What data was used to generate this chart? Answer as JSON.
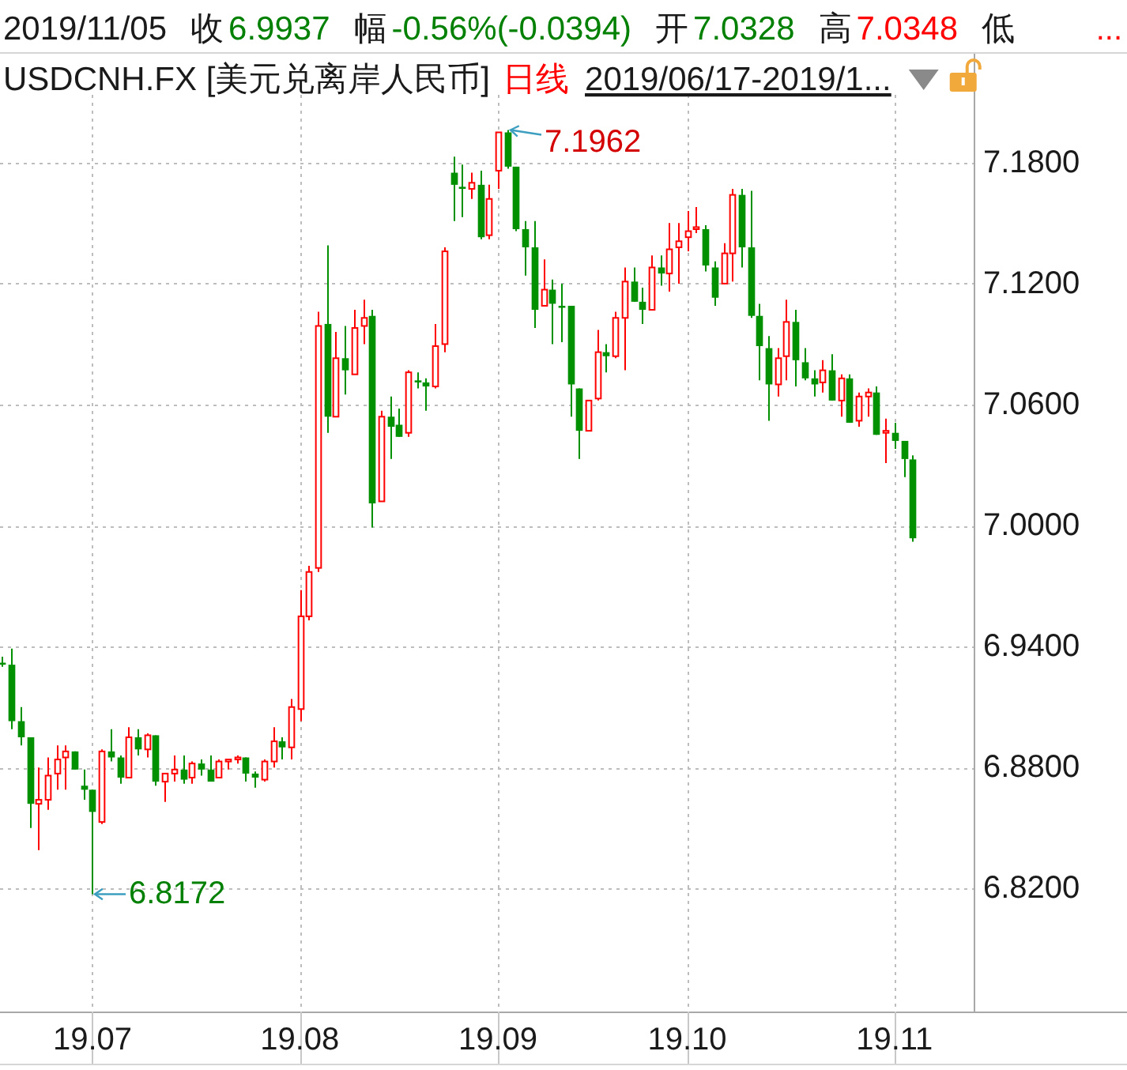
{
  "chart_data": {
    "type": "candlestick",
    "title": "USDCNH.FX [美元兑离岸人民币]",
    "subtitle": "日线",
    "categories": [
      null,
      null,
      null,
      null,
      null,
      null,
      null,
      null,
      null,
      null,
      "19.07",
      null,
      null,
      null,
      null,
      null,
      null,
      null,
      null,
      null,
      null,
      null,
      null,
      null,
      null,
      null,
      null,
      null,
      null,
      null,
      null,
      null,
      null,
      "19.08",
      null,
      null,
      null,
      null,
      null,
      null,
      null,
      null,
      null,
      null,
      null,
      null,
      null,
      null,
      null,
      null,
      null,
      null,
      null,
      null,
      null,
      "19.09",
      null,
      null,
      null,
      null,
      null,
      null,
      null,
      null,
      null,
      null,
      null,
      null,
      null,
      null,
      null,
      null,
      null,
      null,
      null,
      null,
      "19.10",
      null,
      null,
      null,
      null,
      null,
      null,
      null,
      null,
      null,
      null,
      null,
      null,
      null,
      null,
      null,
      null,
      null,
      null,
      null,
      null,
      null,
      null,
      "19.11",
      null,
      null
    ],
    "ohlc": [
      [
        6.932,
        6.935,
        6.93,
        6.931
      ],
      [
        6.931,
        6.939,
        6.899,
        6.903
      ],
      [
        6.903,
        6.91,
        6.891,
        6.895
      ],
      [
        6.895,
        6.895,
        6.85,
        6.862
      ],
      [
        6.862,
        6.88,
        6.839,
        6.864
      ],
      [
        6.864,
        6.885,
        6.859,
        6.876
      ],
      [
        6.877,
        6.891,
        6.869,
        6.884
      ],
      [
        6.885,
        6.891,
        6.869,
        6.888
      ],
      [
        6.888,
        6.888,
        6.879,
        6.879
      ],
      [
        6.871,
        6.879,
        6.864,
        6.869
      ],
      [
        6.869,
        6.869,
        6.8172,
        6.858
      ],
      [
        6.853,
        6.889,
        6.852,
        6.888
      ],
      [
        6.888,
        6.899,
        6.883,
        6.885
      ],
      [
        6.885,
        6.886,
        6.872,
        6.875
      ],
      [
        6.875,
        6.9,
        6.875,
        6.895
      ],
      [
        6.895,
        6.899,
        6.886,
        6.889
      ],
      [
        6.889,
        6.897,
        6.885,
        6.896
      ],
      [
        6.896,
        6.896,
        6.871,
        6.873
      ],
      [
        6.873,
        6.877,
        6.863,
        6.877
      ],
      [
        6.877,
        6.886,
        6.873,
        6.879
      ],
      [
        6.879,
        6.886,
        6.872,
        6.874
      ],
      [
        6.875,
        6.883,
        6.872,
        6.882
      ],
      [
        6.882,
        6.884,
        6.876,
        6.879
      ],
      [
        6.879,
        6.886,
        6.873,
        6.873
      ],
      [
        6.875,
        6.884,
        6.875,
        6.883
      ],
      [
        6.883,
        6.884,
        6.879,
        6.884
      ],
      [
        6.884,
        6.886,
        6.882,
        6.885
      ],
      [
        6.885,
        6.885,
        6.873,
        6.877
      ],
      [
        6.877,
        6.878,
        6.87,
        6.875
      ],
      [
        6.874,
        6.884,
        6.873,
        6.883
      ],
      [
        6.883,
        6.9,
        6.88,
        6.893
      ],
      [
        6.893,
        6.895,
        6.884,
        6.89
      ],
      [
        6.89,
        6.914,
        6.884,
        6.91
      ],
      [
        6.909,
        6.968,
        6.903,
        6.955
      ],
      [
        6.955,
        6.98,
        6.953,
        6.977
      ],
      [
        6.979,
        7.106,
        6.977,
        7.099
      ],
      [
        7.1,
        7.139,
        7.046,
        7.054
      ],
      [
        7.054,
        7.096,
        7.054,
        7.083
      ],
      [
        7.083,
        7.099,
        7.065,
        7.077
      ],
      [
        7.075,
        7.107,
        7.075,
        7.098
      ],
      [
        7.099,
        7.112,
        7.09,
        7.103
      ],
      [
        7.104,
        7.107,
        6.999,
        7.011
      ],
      [
        7.012,
        7.057,
        7.012,
        7.054
      ],
      [
        7.054,
        7.064,
        7.033,
        7.049
      ],
      [
        7.05,
        7.058,
        7.044,
        7.044
      ],
      [
        7.046,
        7.077,
        7.044,
        7.076
      ],
      [
        7.072,
        7.076,
        7.068,
        7.071
      ],
      [
        7.071,
        7.073,
        7.057,
        7.069
      ],
      [
        7.069,
        7.1,
        7.068,
        7.089
      ],
      [
        7.09,
        7.138,
        7.086,
        7.136
      ],
      [
        7.175,
        7.183,
        7.151,
        7.169
      ],
      [
        7.168,
        7.179,
        7.153,
        7.167
      ],
      [
        7.167,
        7.175,
        7.162,
        7.17
      ],
      [
        7.169,
        7.176,
        7.142,
        7.143
      ],
      [
        7.144,
        7.169,
        7.142,
        7.162
      ],
      [
        7.176,
        7.195,
        7.167,
        7.195
      ],
      [
        7.195,
        7.1962,
        7.177,
        7.178
      ],
      [
        7.178,
        7.178,
        7.146,
        7.147
      ],
      [
        7.147,
        7.151,
        7.124,
        7.138
      ],
      [
        7.138,
        7.151,
        7.098,
        7.107
      ],
      [
        7.109,
        7.132,
        7.109,
        7.117
      ],
      [
        7.117,
        7.122,
        7.09,
        7.11
      ],
      [
        7.109,
        7.12,
        7.091,
        7.108
      ],
      [
        7.109,
        7.109,
        7.054,
        7.07
      ],
      [
        7.068,
        7.068,
        7.033,
        7.047
      ],
      [
        7.047,
        7.062,
        7.047,
        7.062
      ],
      [
        7.063,
        7.097,
        7.062,
        7.086
      ],
      [
        7.086,
        7.09,
        7.076,
        7.084
      ],
      [
        7.084,
        7.106,
        7.083,
        7.103
      ],
      [
        7.103,
        7.128,
        7.077,
        7.121
      ],
      [
        7.121,
        7.128,
        7.111,
        7.111
      ],
      [
        7.111,
        7.118,
        7.1,
        7.107
      ],
      [
        7.107,
        7.134,
        7.107,
        7.128
      ],
      [
        7.128,
        7.134,
        7.119,
        7.125
      ],
      [
        7.125,
        7.15,
        7.116,
        7.137
      ],
      [
        7.138,
        7.15,
        7.12,
        7.141
      ],
      [
        7.143,
        7.156,
        7.136,
        7.146
      ],
      [
        7.147,
        7.158,
        7.145,
        7.148
      ],
      [
        7.147,
        7.149,
        7.126,
        7.129
      ],
      [
        7.128,
        7.131,
        7.109,
        7.113
      ],
      [
        7.12,
        7.14,
        7.12,
        7.135
      ],
      [
        7.135,
        7.167,
        7.121,
        7.164
      ],
      [
        7.164,
        7.167,
        7.128,
        7.138
      ],
      [
        7.138,
        7.166,
        7.103,
        7.104
      ],
      [
        7.104,
        7.11,
        7.072,
        7.089
      ],
      [
        7.088,
        7.094,
        7.052,
        7.07
      ],
      [
        7.07,
        7.088,
        7.064,
        7.083
      ],
      [
        7.084,
        7.112,
        7.072,
        7.101
      ],
      [
        7.101,
        7.107,
        7.069,
        7.082
      ],
      [
        7.081,
        7.088,
        7.072,
        7.073
      ],
      [
        7.073,
        7.077,
        7.064,
        7.07
      ],
      [
        7.071,
        7.082,
        7.066,
        7.077
      ],
      [
        7.077,
        7.085,
        7.062,
        7.062
      ],
      [
        7.062,
        7.075,
        7.054,
        7.073
      ],
      [
        7.073,
        7.075,
        7.051,
        7.051
      ],
      [
        7.052,
        7.066,
        7.049,
        7.064
      ],
      [
        7.064,
        7.068,
        7.054,
        7.066
      ],
      [
        7.066,
        7.069,
        7.045,
        7.045
      ],
      [
        7.046,
        7.053,
        7.031,
        7.047
      ],
      [
        7.046,
        7.051,
        7.038,
        7.042
      ],
      [
        7.042,
        7.042,
        7.024,
        7.033
      ],
      [
        7.0328,
        7.0348,
        6.992,
        6.9937
      ]
    ],
    "ylim": [
      6.759,
      7.234
    ],
    "yticks": [
      {
        "value": 6.82,
        "label": "6.8200"
      },
      {
        "value": 6.88,
        "label": "6.8800"
      },
      {
        "value": 6.94,
        "label": "6.9400"
      },
      {
        "value": 7.0,
        "label": "7.0000"
      },
      {
        "value": 7.06,
        "label": "7.0600"
      },
      {
        "value": 7.12,
        "label": "7.1200"
      },
      {
        "value": 7.18,
        "label": "7.1800"
      }
    ],
    "grid": true,
    "annotations": [
      "2019/11/05",
      "收",
      "6.9937",
      "幅",
      "-0.56%(-0.0394)",
      "开",
      "7.0328",
      "高",
      "7.0348",
      "低",
      "...",
      "2019/06/17-2019/1...",
      "7.1962",
      {
        "text": "6.8172",
        "x": "19.07",
        "y": 6.8172
      }
    ]
  }
}
